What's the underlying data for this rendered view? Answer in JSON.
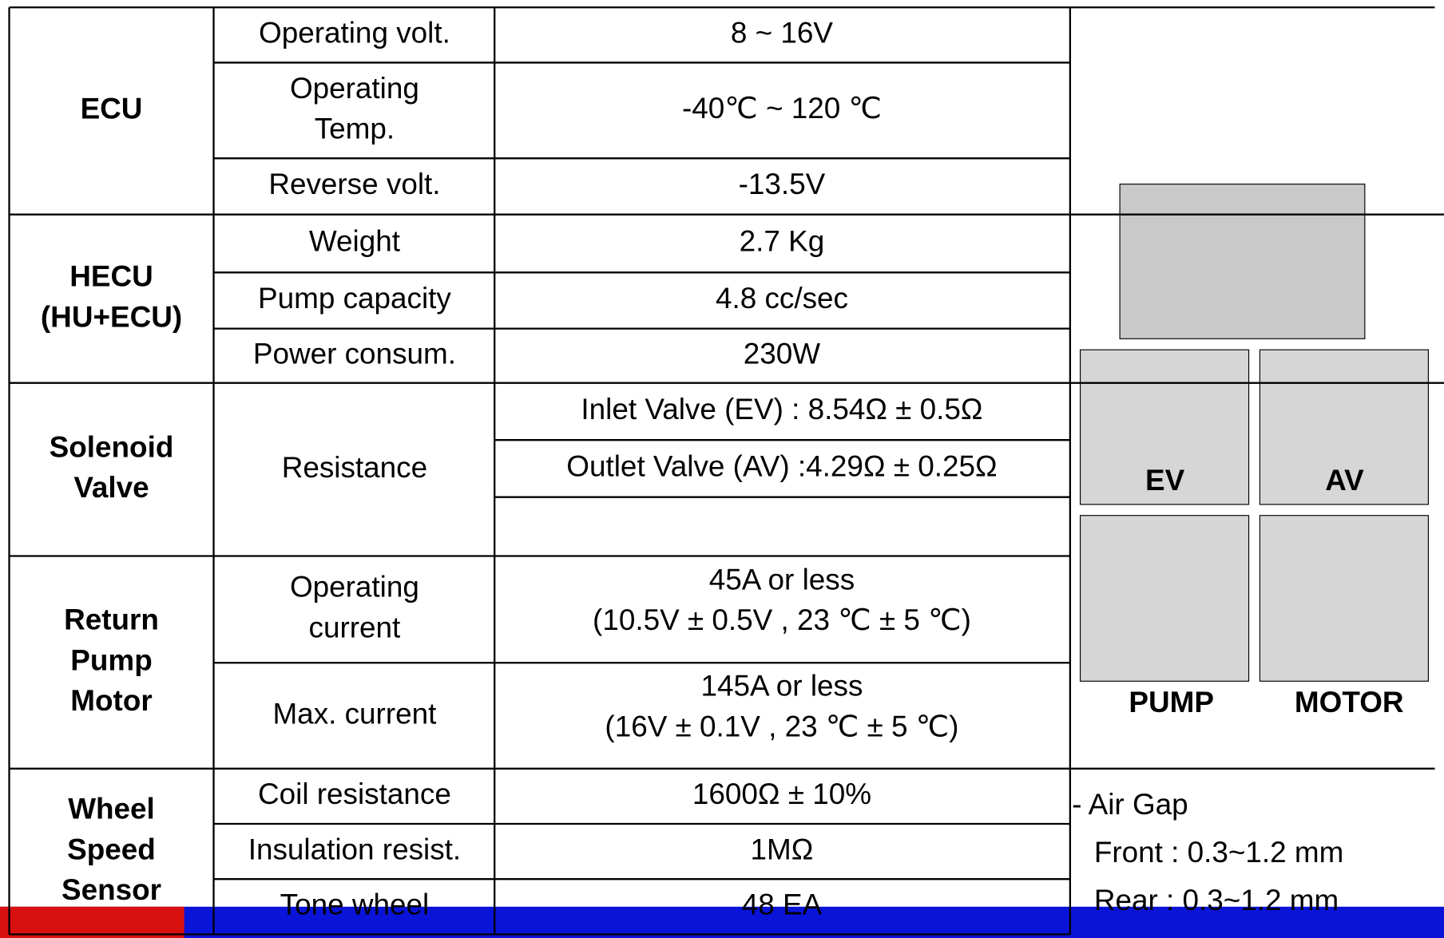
{
  "sections": [
    {
      "label": [
        "ECU"
      ],
      "rows": [
        {
          "param": [
            "Operating volt."
          ],
          "values": [
            "8 ~ 16V"
          ]
        },
        {
          "param": [
            "Operating",
            "Temp."
          ],
          "values": [
            "-40℃ ~ 120 ℃"
          ]
        },
        {
          "param": [
            "Reverse volt."
          ],
          "values": [
            "-13.5V"
          ]
        }
      ]
    },
    {
      "label": [
        "HECU",
        "(HU+ECU)"
      ],
      "rows": [
        {
          "param": [
            "Weight"
          ],
          "values": [
            "2.7 Kg"
          ]
        },
        {
          "param": [
            "Pump capacity"
          ],
          "values": [
            "4.8 cc/sec"
          ]
        },
        {
          "param": [
            "Power consum."
          ],
          "values": [
            "230W"
          ]
        }
      ]
    },
    {
      "label": [
        "Solenoid",
        "Valve"
      ],
      "rows": [
        {
          "param": [
            "Resistance"
          ],
          "values": [
            "Inlet Valve (EV) : 8.54Ω ± 0.5Ω",
            "Outlet Valve (AV) :4.29Ω ± 0.25Ω"
          ]
        }
      ]
    },
    {
      "label": [
        "Return",
        "Pump",
        "Motor"
      ],
      "rows": [
        {
          "param": [
            "Operating",
            "current"
          ],
          "values": [
            "45A or less",
            "(10.5V ± 0.5V , 23 ℃ ± 5 ℃)"
          ]
        },
        {
          "param": [
            "Max. current"
          ],
          "values": [
            "145A or less",
            "(16V ± 0.1V , 23 ℃ ± 5 ℃)"
          ]
        }
      ]
    },
    {
      "label": [
        "Wheel",
        "Speed",
        "Sensor"
      ],
      "rows": [
        {
          "param": [
            "Coil resistance"
          ],
          "values": [
            "1600Ω ± 10%"
          ]
        },
        {
          "param": [
            "Insulation resist."
          ],
          "values": [
            "1MΩ"
          ]
        },
        {
          "param": [
            "Tone wheel"
          ],
          "values": [
            "48 EA"
          ]
        }
      ]
    }
  ],
  "photos": [
    "EV",
    "AV",
    "PUMP",
    "MOTOR"
  ],
  "air_gap": [
    "- Air Gap",
    "Front : 0.3~1.2 mm",
    "Rear  : 0.3~1.2 mm"
  ]
}
